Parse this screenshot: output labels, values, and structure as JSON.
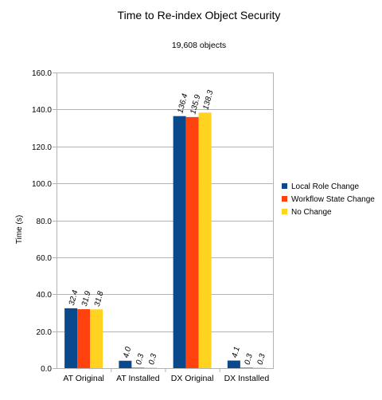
{
  "chart_data": {
    "type": "bar",
    "title": "Time to Re-index Object Security",
    "subtitle": "19,608 objects",
    "ylabel": "Time (s)",
    "xlabel": "",
    "ylim": [
      0,
      160
    ],
    "yticks": [
      0,
      20,
      40,
      60,
      80,
      100,
      120,
      140,
      160
    ],
    "ytick_labels": [
      "0.0",
      "20.0",
      "40.0",
      "60.0",
      "80.0",
      "100.0",
      "120.0",
      "140.0",
      "160.0"
    ],
    "grid": "horizontal",
    "legend_position": "right",
    "categories": [
      "AT Original",
      "AT Installed",
      "DX Original",
      "DX Installed"
    ],
    "series": [
      {
        "name": "Local Role Change",
        "color": "#0a4a8c",
        "values": [
          32.4,
          4.0,
          136.4,
          4.1
        ],
        "labels": [
          "32.4",
          "4.0",
          "136.4",
          "4.1"
        ]
      },
      {
        "name": "Workflow State Change",
        "color": "#ff420e",
        "values": [
          31.9,
          0.3,
          135.9,
          0.3
        ],
        "labels": [
          "31.9",
          "0.3",
          "135.9",
          "0.3"
        ]
      },
      {
        "name": "No Change",
        "color": "#ffd320",
        "values": [
          31.8,
          0.3,
          138.3,
          0.3
        ],
        "labels": [
          "31.8",
          "0.3",
          "138.3",
          "0.3"
        ]
      }
    ]
  }
}
